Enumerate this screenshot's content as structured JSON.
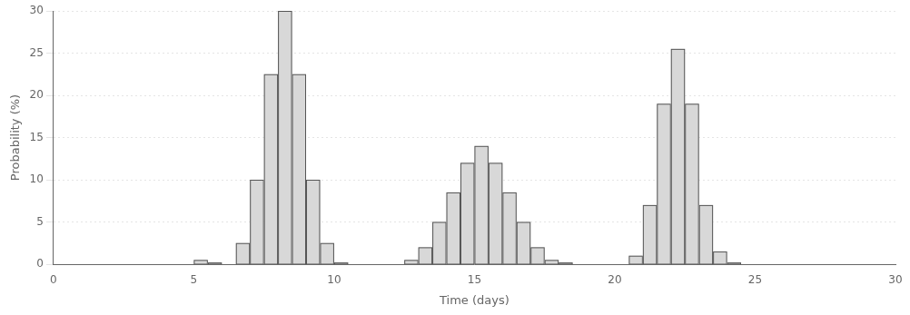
{
  "chart_data": {
    "type": "bar",
    "x": [
      5.0,
      5.5,
      6.5,
      7.0,
      7.5,
      8.0,
      8.5,
      9.0,
      9.5,
      10.0,
      12.5,
      13.0,
      13.5,
      14.0,
      14.5,
      15.0,
      15.5,
      16.0,
      16.5,
      17.0,
      17.5,
      18.0,
      20.5,
      21.0,
      21.5,
      22.0,
      22.5,
      23.0,
      23.5,
      24.0,
      24.5
    ],
    "values": [
      0.5,
      0.2,
      2.5,
      10.0,
      22.5,
      30.0,
      22.5,
      10.0,
      2.5,
      0.2,
      0.5,
      2.0,
      5.0,
      8.5,
      12.0,
      14.0,
      12.0,
      8.5,
      5.0,
      2.0,
      0.5,
      0.2,
      1.0,
      7.0,
      19.0,
      25.5,
      19.0,
      7.0,
      1.5,
      0.2,
      0.0
    ],
    "color": "#d8d8d8",
    "xlabel": "Time (days)",
    "ylabel": "Probability (%)",
    "xlim": [
      0,
      30
    ],
    "ylim": [
      0,
      30
    ],
    "xticks": [
      0,
      5,
      10,
      15,
      20,
      25,
      30
    ],
    "yticks": [
      0,
      5,
      10,
      15,
      20,
      25,
      30
    ],
    "grid": "y"
  }
}
